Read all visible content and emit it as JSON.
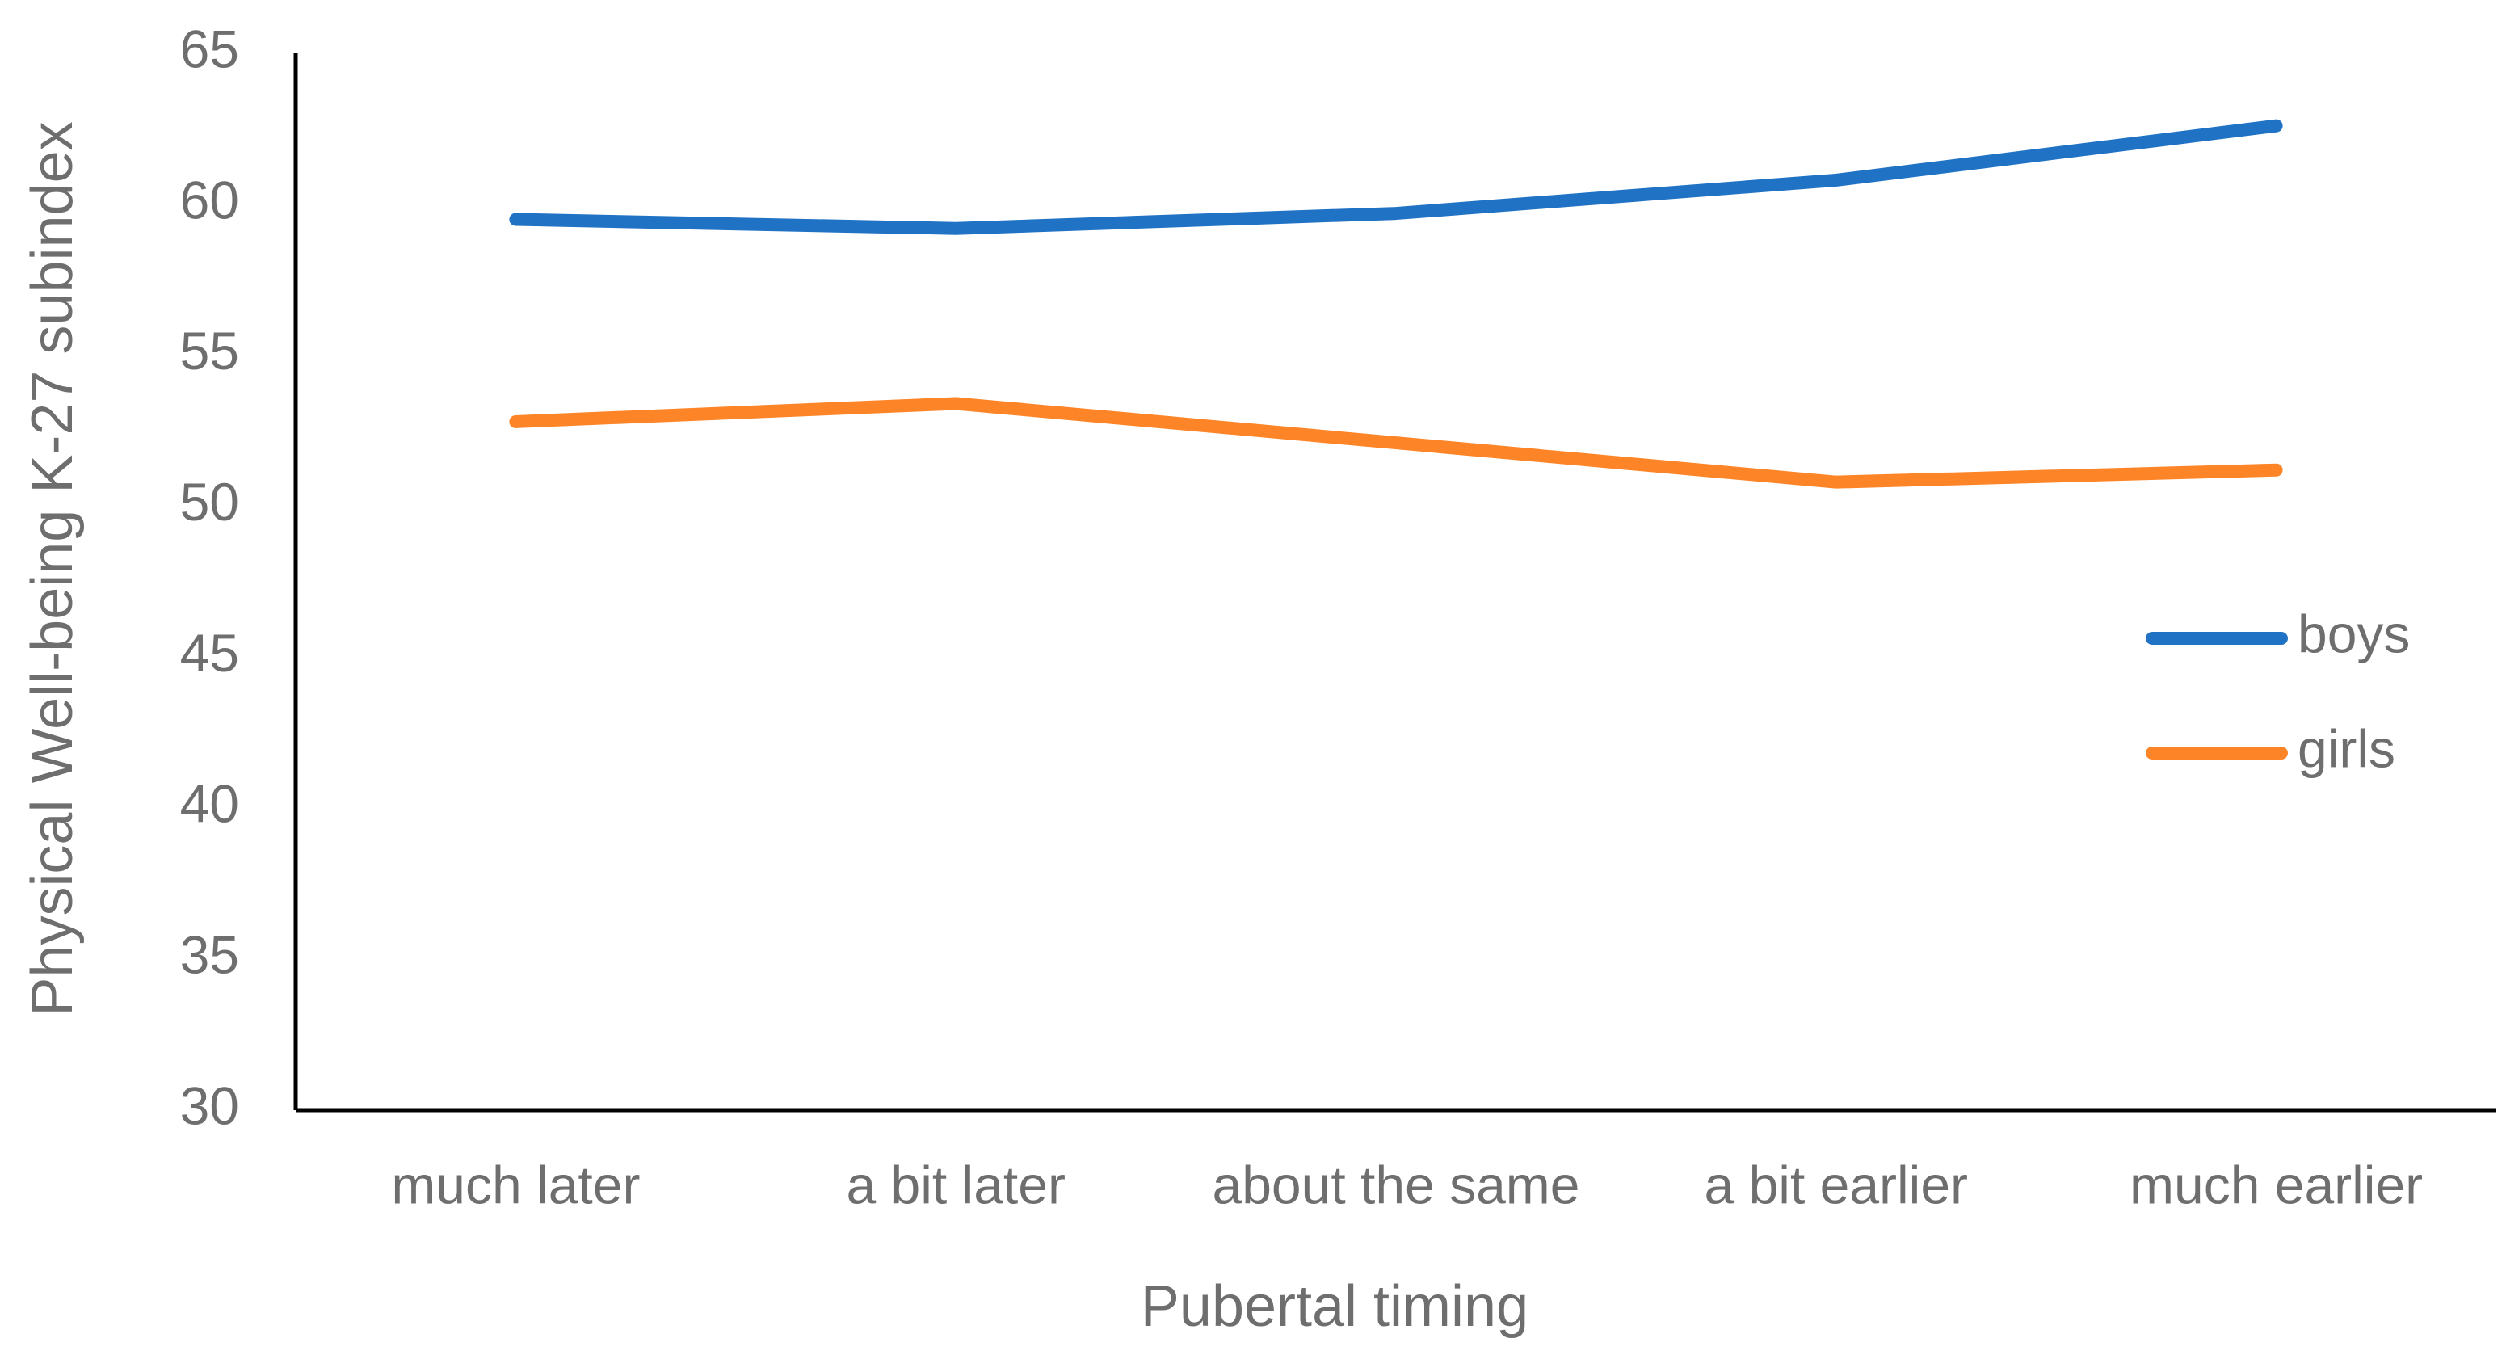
{
  "chart_data": {
    "type": "line",
    "xlabel": "Pubertal timing",
    "ylabel": "Physical Well-being K-27 subindex",
    "categories": [
      "much later",
      "a bit later",
      "about the same",
      "a bit earlier",
      "much earlier"
    ],
    "series": [
      {
        "name": "boys",
        "color": "#1f72c4",
        "values": [
          59.5,
          59.2,
          59.7,
          60.8,
          62.6
        ]
      },
      {
        "name": "girls",
        "color": "#fd8427",
        "values": [
          52.8,
          53.4,
          52.1,
          50.8,
          51.2
        ]
      }
    ],
    "ylim": [
      30,
      65
    ],
    "yticks": [
      30,
      35,
      40,
      45,
      50,
      55,
      60,
      65
    ],
    "grid": false,
    "legend": "right"
  }
}
